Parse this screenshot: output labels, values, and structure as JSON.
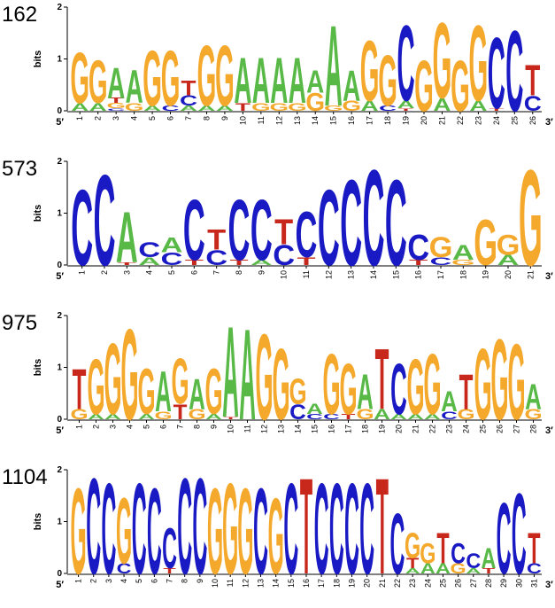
{
  "chart_data": [
    {
      "type": "logo",
      "title": "162",
      "y_label": "bits",
      "x_start_label": "5′",
      "x_end_label": "3′",
      "ylim": [
        0,
        2
      ],
      "yticks": [
        0,
        1,
        2
      ],
      "categories": [
        1,
        2,
        3,
        4,
        5,
        6,
        7,
        8,
        9,
        10,
        11,
        12,
        13,
        14,
        15,
        16,
        17,
        18,
        19,
        20,
        21,
        22,
        23,
        24,
        25,
        26
      ],
      "series": [
        {
          "name": "A",
          "color": "#58b947",
          "values": [
            0.15,
            0.15,
            0.6,
            0.65,
            0.1,
            0,
            0.1,
            0.1,
            0.1,
            0.9,
            0.9,
            0.9,
            0.9,
            0.45,
            1.6,
            0.6,
            0.2,
            0,
            0.15,
            0,
            0.25,
            0,
            0.2,
            0,
            0,
            0
          ]
        },
        {
          "name": "C",
          "color": "#1a1ac4",
          "values": [
            0,
            0,
            0.05,
            0,
            0,
            0.1,
            0.2,
            0,
            0,
            0,
            0,
            0,
            0,
            0,
            0,
            0,
            0,
            0.1,
            1.5,
            0,
            0,
            0,
            0,
            1.4,
            1.6,
            0.3
          ]
        },
        {
          "name": "G",
          "color": "#f4a92c",
          "values": [
            1.0,
            0.85,
            0.1,
            0.15,
            1.1,
            1.1,
            0,
            1.2,
            1.2,
            0,
            0.15,
            0.15,
            0.15,
            0.35,
            0.1,
            0.2,
            1.2,
            1.0,
            0,
            1.0,
            1.5,
            1.0,
            1.5,
            0,
            0,
            0
          ]
        },
        {
          "name": "T",
          "color": "#c8281c",
          "values": [
            0,
            0,
            0.1,
            0,
            0,
            0,
            0.3,
            0,
            0,
            0.15,
            0,
            0,
            0,
            0,
            0,
            0,
            0,
            0,
            0.05,
            0,
            0,
            0,
            0,
            0.05,
            0,
            0.6
          ]
        }
      ]
    },
    {
      "type": "logo",
      "title": "573",
      "y_label": "bits",
      "x_start_label": "5′",
      "x_end_label": "3′",
      "ylim": [
        0,
        2
      ],
      "yticks": [
        0,
        1,
        2
      ],
      "categories": [
        1,
        2,
        3,
        4,
        5,
        6,
        7,
        8,
        9,
        10,
        11,
        12,
        13,
        14,
        15,
        16,
        17,
        18,
        19,
        20,
        21
      ],
      "series": [
        {
          "name": "A",
          "color": "#58b947",
          "values": [
            0,
            0,
            1.0,
            0.15,
            0.3,
            0,
            0,
            0,
            0.1,
            0,
            0,
            0,
            0,
            0,
            0,
            0,
            0,
            0.3,
            0,
            0.2,
            0
          ]
        },
        {
          "name": "C",
          "color": "#1a1ac4",
          "values": [
            1.5,
            1.8,
            0,
            0.3,
            0.25,
            1.2,
            0.3,
            1.2,
            1.2,
            0.4,
            0.9,
            1.5,
            1.7,
            1.9,
            1.7,
            0.5,
            0.15,
            0,
            0,
            0,
            0
          ]
        },
        {
          "name": "G",
          "color": "#f4a92c",
          "values": [
            0,
            0,
            0,
            0,
            0,
            0,
            0,
            0,
            0,
            0,
            0,
            0,
            0,
            0,
            0,
            0,
            0.4,
            0.1,
            0.9,
            0.4,
            1.9
          ]
        },
        {
          "name": "T",
          "color": "#c8281c",
          "values": [
            0,
            0,
            0.05,
            0,
            0,
            0.1,
            0.4,
            0.1,
            0,
            0.5,
            0.15,
            0,
            0,
            0,
            0,
            0.1,
            0,
            0,
            0,
            0,
            0
          ]
        }
      ]
    },
    {
      "type": "logo",
      "title": "975",
      "y_label": "bits",
      "x_start_label": "5′",
      "x_end_label": "3′",
      "ylim": [
        0,
        2
      ],
      "yticks": [
        0,
        1,
        2
      ],
      "categories": [
        1,
        2,
        3,
        4,
        5,
        6,
        7,
        8,
        9,
        10,
        11,
        12,
        13,
        14,
        15,
        16,
        17,
        18,
        19,
        20,
        21,
        22,
        23,
        24,
        25,
        26,
        27,
        28
      ],
      "series": [
        {
          "name": "A",
          "color": "#58b947",
          "values": [
            0,
            0.1,
            0.1,
            0,
            0.1,
            0.8,
            0,
            0.6,
            0.1,
            1.8,
            1.8,
            0,
            0,
            0,
            0.2,
            0,
            0,
            0.7,
            0.2,
            0.1,
            0.1,
            0.1,
            0.4,
            0,
            0,
            0,
            0,
            0.5
          ]
        },
        {
          "name": "C",
          "color": "#1a1ac4",
          "values": [
            0,
            0,
            0,
            0,
            0,
            0,
            0,
            0,
            0,
            0,
            0,
            0,
            0,
            0.3,
            0.1,
            0.1,
            0,
            0,
            0,
            1.0,
            0,
            0,
            0.15,
            0,
            0,
            0,
            0,
            0
          ]
        },
        {
          "name": "G",
          "color": "#f4a92c",
          "values": [
            0.2,
            1.1,
            1.4,
            1.8,
            0.9,
            0.15,
            0.9,
            0.2,
            0.9,
            0,
            0,
            1.7,
            1.4,
            0.5,
            0,
            1.2,
            1.0,
            0.2,
            0,
            0,
            1.1,
            1.2,
            0,
            0.2,
            1.4,
            1.6,
            1.5,
            0.2
          ]
        },
        {
          "name": "T",
          "color": "#c8281c",
          "values": [
            0.8,
            0,
            0,
            0,
            0,
            0,
            0.3,
            0,
            0,
            0.05,
            0,
            0,
            0,
            0,
            0,
            0,
            0.1,
            0,
            1.2,
            0,
            0,
            0,
            0,
            0.7,
            0,
            0,
            0,
            0
          ]
        }
      ]
    },
    {
      "type": "logo",
      "title": "1104",
      "y_label": "bits",
      "x_start_label": "5′",
      "x_end_label": "3′",
      "ylim": [
        0,
        2
      ],
      "yticks": [
        0,
        1,
        2
      ],
      "categories": [
        1,
        2,
        3,
        4,
        5,
        6,
        7,
        8,
        9,
        10,
        11,
        12,
        13,
        14,
        15,
        16,
        17,
        18,
        19,
        20,
        21,
        22,
        23,
        24,
        25,
        26,
        27,
        28,
        29,
        30,
        31
      ],
      "series": [
        {
          "name": "A",
          "color": "#58b947",
          "values": [
            0,
            0,
            0,
            0,
            0,
            0,
            0,
            0,
            0,
            0,
            0,
            0,
            0,
            0,
            0,
            0,
            0,
            0,
            0,
            0,
            0,
            0,
            0.1,
            0.2,
            0.2,
            0,
            0.1,
            0.4,
            0,
            0,
            0
          ]
        },
        {
          "name": "C",
          "color": "#1a1ac4",
          "values": [
            0,
            1.9,
            1.8,
            0.2,
            1.8,
            1.7,
            0.8,
            1.9,
            1.9,
            0,
            0,
            0,
            1.7,
            0,
            1.8,
            0,
            1.8,
            1.8,
            1.8,
            1.8,
            0,
            1.2,
            0,
            0,
            0,
            0.4,
            0.3,
            0,
            1.4,
            1.6,
            0.2
          ]
        },
        {
          "name": "G",
          "color": "#f4a92c",
          "values": [
            1.7,
            0,
            0,
            1.3,
            0,
            0,
            0,
            0,
            0,
            1.7,
            1.8,
            1.7,
            0,
            1.5,
            0,
            0,
            0,
            0,
            0,
            0,
            0,
            0,
            0.5,
            0.4,
            0,
            0.2,
            0,
            0,
            0,
            0,
            0
          ]
        },
        {
          "name": "T",
          "color": "#c8281c",
          "values": [
            0,
            0,
            0,
            0,
            0,
            0,
            0.1,
            0,
            0,
            0,
            0,
            0,
            0,
            0,
            0,
            1.9,
            0,
            0,
            0,
            0,
            1.9,
            0,
            0.2,
            0,
            0.6,
            0,
            0,
            0.1,
            0,
            0,
            0.6
          ]
        }
      ]
    }
  ]
}
